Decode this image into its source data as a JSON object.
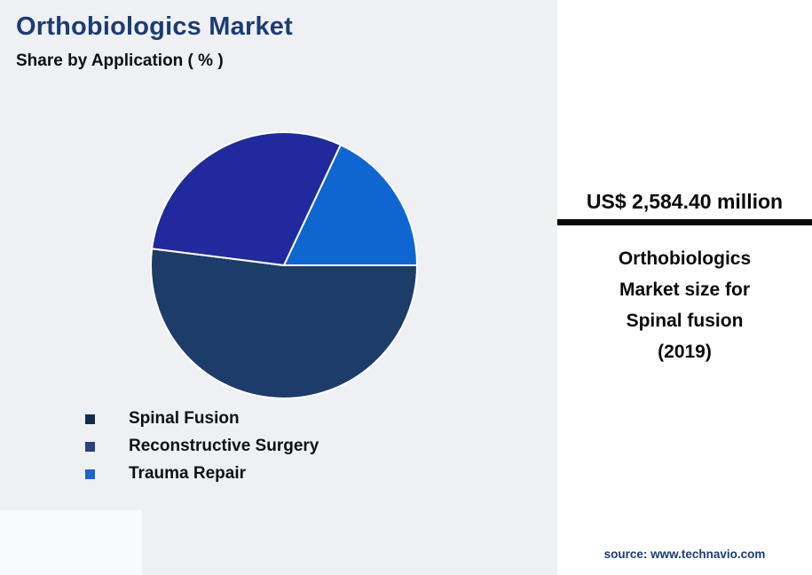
{
  "header": {
    "title": "Orthobiologics Market",
    "subtitle": "Share by Application ( % )"
  },
  "chart_data": {
    "type": "pie",
    "title": "Orthobiologics Market Share by Application (%)",
    "start_angle_deg": 0,
    "direction": "clockwise",
    "legend_position": "bottom-left",
    "slices": [
      {
        "label": "Spinal Fusion",
        "value": 52,
        "color": "#1d3c69"
      },
      {
        "label": "Reconstructive Surgery",
        "value": 30,
        "color": "#212a9c"
      },
      {
        "label": "Trauma Repair",
        "value": 18,
        "color": "#0f66d0"
      }
    ]
  },
  "legend": {
    "items": [
      {
        "label": "Spinal Fusion",
        "color": "#132c4e"
      },
      {
        "label": "Reconstructive Surgery",
        "color": "#2d3f7f"
      },
      {
        "label": "Trauma Repair",
        "color": "#1b65c9"
      }
    ]
  },
  "side_panel": {
    "market_value": "US$ 2,584.40 million",
    "description_lines": [
      "Orthobiologics",
      "Market size for",
      "Spinal fusion",
      "(2019)"
    ],
    "source": "source: www.technavio.com"
  },
  "colors": {
    "background": "#eef0f4",
    "panel_background": "#ffffff",
    "title_navy": "#1d3c70",
    "divider_black": "#0a0a0a"
  }
}
